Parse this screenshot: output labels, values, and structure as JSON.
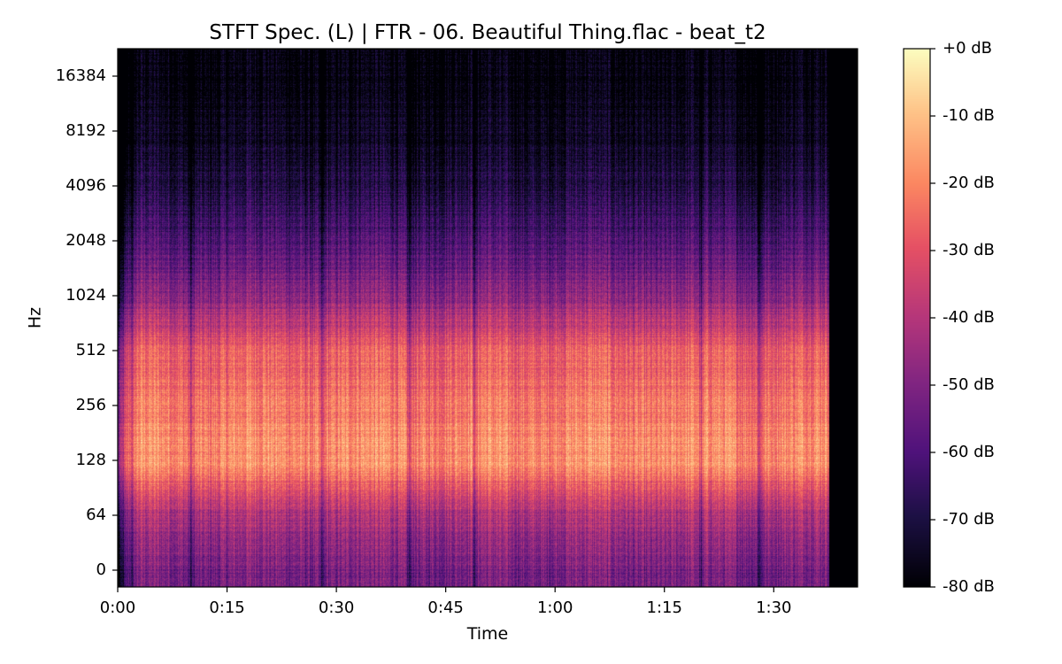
{
  "chart_data": {
    "type": "heatmap",
    "title": "STFT Spec. (L) | FTR - 06. Beautiful Thing.flac - beat_t2",
    "xlabel": "Time",
    "ylabel": "Hz",
    "x_unit": "seconds",
    "xlim": [
      0,
      101.5
    ],
    "audio_end": 97.5,
    "x_ticks": [
      {
        "value": 0,
        "label": "0:00"
      },
      {
        "value": 15,
        "label": "0:15"
      },
      {
        "value": 30,
        "label": "0:30"
      },
      {
        "value": 45,
        "label": "0:45"
      },
      {
        "value": 60,
        "label": "1:00"
      },
      {
        "value": 75,
        "label": "1:15"
      },
      {
        "value": 90,
        "label": "1:30"
      }
    ],
    "y_scale": "log2 (symlog)",
    "y_ticks": [
      {
        "value": 0,
        "label": "0"
      },
      {
        "value": 64,
        "label": "64"
      },
      {
        "value": 128,
        "label": "128"
      },
      {
        "value": 256,
        "label": "256"
      },
      {
        "value": 512,
        "label": "512"
      },
      {
        "value": 1024,
        "label": "1024"
      },
      {
        "value": 2048,
        "label": "2048"
      },
      {
        "value": 4096,
        "label": "4096"
      },
      {
        "value": 8192,
        "label": "8192"
      },
      {
        "value": 16384,
        "label": "16384"
      }
    ],
    "colormap": "magma",
    "colorbar": {
      "range_db": [
        -80,
        0
      ],
      "ticks": [
        {
          "value": 0,
          "label": "+0 dB"
        },
        {
          "value": -10,
          "label": "-10 dB"
        },
        {
          "value": -20,
          "label": "-20 dB"
        },
        {
          "value": -30,
          "label": "-30 dB"
        },
        {
          "value": -40,
          "label": "-40 dB"
        },
        {
          "value": -50,
          "label": "-50 dB"
        },
        {
          "value": -60,
          "label": "-60 dB"
        },
        {
          "value": -70,
          "label": "-70 dB"
        },
        {
          "value": -80,
          "label": "-80 dB"
        }
      ]
    },
    "quiet_sections_s": [
      2,
      10,
      28,
      40,
      49,
      80,
      88
    ],
    "band_levels_db": [
      {
        "hz": 0,
        "db": -52
      },
      {
        "hz": 64,
        "db": -42
      },
      {
        "hz": 128,
        "db": -18
      },
      {
        "hz": 256,
        "db": -22
      },
      {
        "hz": 512,
        "db": -28
      },
      {
        "hz": 1024,
        "db": -48
      },
      {
        "hz": 2048,
        "db": -60
      },
      {
        "hz": 4096,
        "db": -70
      },
      {
        "hz": 8192,
        "db": -76
      },
      {
        "hz": 16384,
        "db": -80
      }
    ]
  }
}
